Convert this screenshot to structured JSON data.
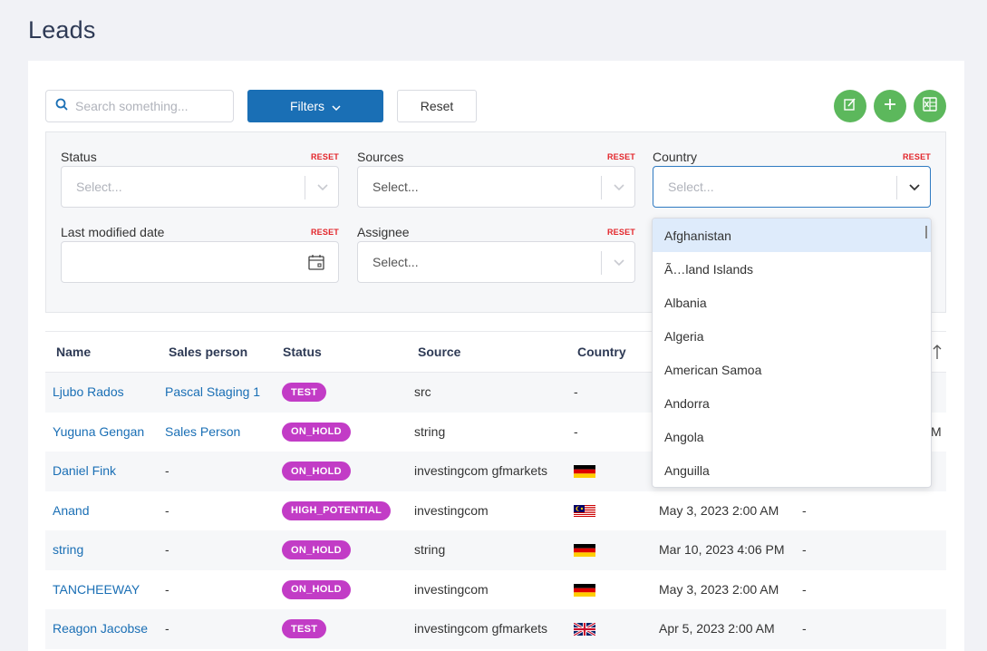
{
  "page": {
    "title": "Leads"
  },
  "toolbar": {
    "search_placeholder": "Search something...",
    "filters_label": "Filters",
    "reset_label": "Reset",
    "colors": {
      "primary": "#1a6fb5",
      "green": "#5cb85c"
    }
  },
  "filters": {
    "reset_label": "RESET",
    "status": {
      "label": "Status",
      "placeholder": "Select..."
    },
    "sources": {
      "label": "Sources",
      "placeholder": "Select..."
    },
    "country": {
      "label": "Country",
      "placeholder": "Select..."
    },
    "last_modified": {
      "label": "Last modified date"
    },
    "assignee": {
      "label": "Assignee",
      "placeholder": "Select..."
    }
  },
  "country_dropdown": {
    "options": [
      "Afghanistan",
      "Ã…land Islands",
      "Albania",
      "Algeria",
      "American Samoa",
      "Andorra",
      "Angola",
      "Anguilla"
    ]
  },
  "table": {
    "columns": [
      "Name",
      "Sales person",
      "Status",
      "Source",
      "Country"
    ],
    "rows": [
      {
        "name": "Ljubo Rados",
        "sales": "Pascal Staging 1",
        "status": "TEST",
        "source": "src",
        "country": "-",
        "date": "",
        "extra": ""
      },
      {
        "name": "Yuguna Gengan",
        "sales": "Sales Person",
        "status": "ON_HOLD",
        "source": "string",
        "country": "-",
        "date": "",
        "extra": ""
      },
      {
        "name": "Daniel Fink",
        "sales": "-",
        "status": "ON_HOLD",
        "source": "investingcom gfmarkets",
        "country": "de-flag",
        "date": "",
        "extra": ""
      },
      {
        "name": "Anand",
        "sales": "-",
        "status": "HIGH_POTENTIAL",
        "source": "investingcom",
        "country": "my-flag",
        "date": "May 3, 2023 2:00 AM",
        "extra": "-"
      },
      {
        "name": "string",
        "sales": "-",
        "status": "ON_HOLD",
        "source": "string",
        "country": "de-flag",
        "date": "Mar 10, 2023 4:06 PM",
        "extra": "-"
      },
      {
        "name": "TANCHEEWAY",
        "sales": "-",
        "status": "ON_HOLD",
        "source": "investingcom",
        "country": "de-flag",
        "date": "May 3, 2023 2:00 AM",
        "extra": "-"
      },
      {
        "name": "Reagon Jacobse",
        "sales": "-",
        "status": "TEST",
        "source": "investingcom gfmarkets",
        "country": "gb-flag",
        "date": "Apr 5, 2023 2:00 AM",
        "extra": "-"
      }
    ],
    "clipped_text": "M"
  }
}
